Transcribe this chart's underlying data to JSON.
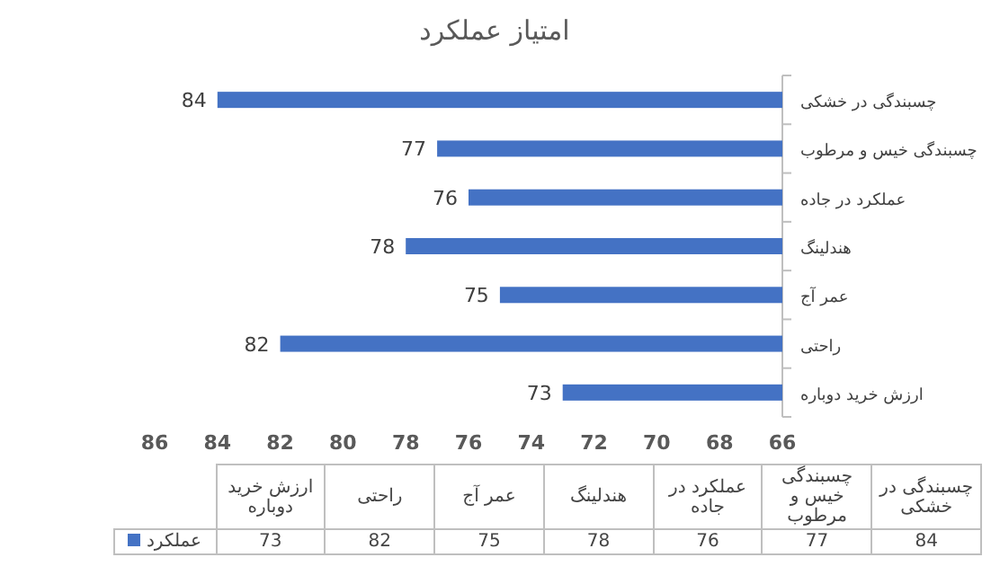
{
  "chart_data": {
    "type": "bar",
    "orientation": "horizontal",
    "title": "امتیاز عملکرد",
    "categories": [
      "چسبندگی در خشکی",
      "چسبندگی خیس و مرطوب",
      "عملکرد در جاده",
      "هندلینگ",
      "عمر آج",
      "راحتی",
      "ارزش خرید دوباره"
    ],
    "series": [
      {
        "name": "عملکرد",
        "color": "#4472c4",
        "values": [
          84,
          77,
          76,
          78,
          75,
          82,
          73
        ]
      }
    ],
    "annotations": [
      "73",
      "82",
      "75",
      "78",
      "76",
      "77",
      "84"
    ],
    "xlim": [
      86,
      66
    ],
    "xticks": [
      86,
      84,
      82,
      80,
      78,
      76,
      74,
      72,
      70,
      68,
      66
    ],
    "data_labels": true,
    "legend": "bottom",
    "grid": false
  }
}
